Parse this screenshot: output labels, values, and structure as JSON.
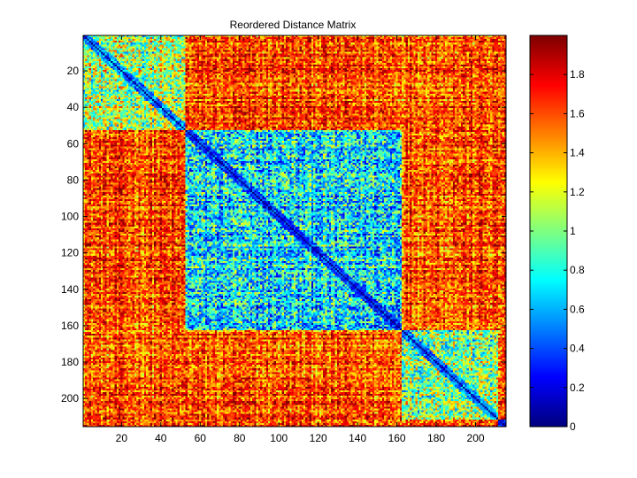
{
  "chart_data": {
    "type": "heatmap",
    "title": "Reordered Distance Matrix",
    "xlabel": "",
    "ylabel": "",
    "n": 215,
    "x_ticks": [
      20,
      40,
      60,
      80,
      100,
      120,
      140,
      160,
      180,
      200
    ],
    "y_ticks": [
      20,
      40,
      60,
      80,
      100,
      120,
      140,
      160,
      180,
      200
    ],
    "xlim": [
      0.5,
      215.5
    ],
    "ylim": [
      0.5,
      215.5
    ],
    "y_direction": "reverse",
    "color_scale": {
      "colormap": "jet",
      "min": 0,
      "max": 2,
      "ticks": [
        0,
        0.2,
        0.4,
        0.6,
        0.8,
        1,
        1.2,
        1.4,
        1.6,
        1.8
      ]
    },
    "blocks": [
      {
        "rows": [
          1,
          52
        ],
        "value_within": 1.05
      },
      {
        "rows": [
          53,
          162
        ],
        "value_within": 0.7
      },
      {
        "rows": [
          163,
          211
        ],
        "value_within": 1.05
      },
      {
        "rows": [
          212,
          215
        ],
        "value_within": 0.4
      }
    ],
    "cross_block_value": 1.6,
    "diagonal_value": 0
  }
}
